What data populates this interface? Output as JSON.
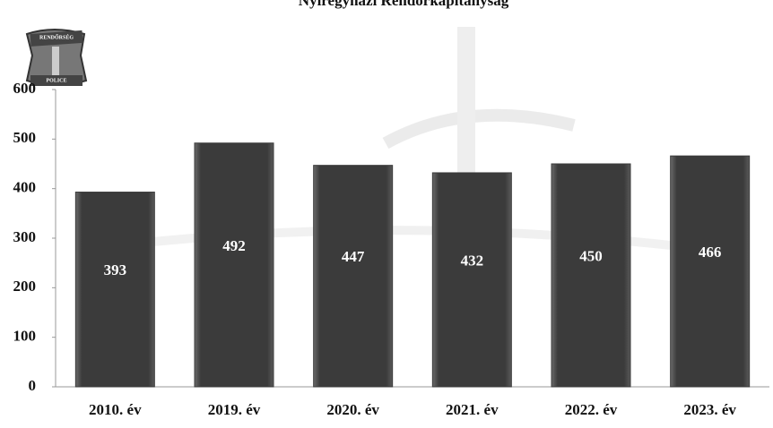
{
  "chart_data": {
    "type": "bar",
    "title": "Nyíregyházi Rendőrkapitányság",
    "annotations": [
      "RENDŐRSÉG",
      "POLICE"
    ],
    "categories": [
      "2010. év",
      "2019. év",
      "2020. év",
      "2021. év",
      "2022. év",
      "2023. év"
    ],
    "values": [
      393,
      492,
      447,
      432,
      450,
      466
    ],
    "color": "#3b3b3b",
    "ylim": [
      0,
      600
    ],
    "yticks": [
      0,
      100,
      200,
      300,
      400,
      500,
      600
    ],
    "grid": false
  }
}
